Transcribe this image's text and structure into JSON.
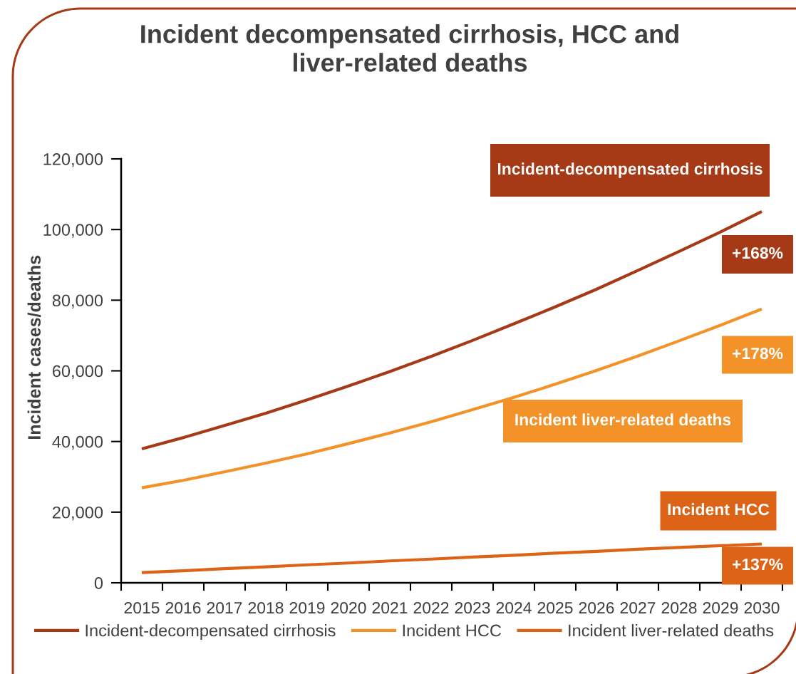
{
  "chart_data": {
    "type": "line",
    "title": "Incident decompensated cirrhosis, HCC and\nliver-related deaths",
    "ylabel": "Incident cases/deaths",
    "categories": [
      "2015",
      "2016",
      "2017",
      "2018",
      "2019",
      "2020",
      "2021",
      "2022",
      "2023",
      "2024",
      "2025",
      "2026",
      "2027",
      "2028",
      "2029",
      "2030"
    ],
    "series": [
      {
        "name": "Incident-decompensated cirrhosis",
        "color": "#a63a17",
        "values": [
          37900,
          41100,
          44500,
          48000,
          51800,
          55700,
          59800,
          64100,
          68600,
          73300,
          78100,
          83100,
          88400,
          93800,
          99300,
          105100
        ]
      },
      {
        "name": "Incident HCC",
        "color": "#f29228",
        "values": [
          26900,
          29000,
          31400,
          33900,
          36500,
          39400,
          42400,
          45600,
          49000,
          52500,
          56200,
          60100,
          64200,
          68500,
          72900,
          77500
        ]
      },
      {
        "name": "Incident liver-related deaths",
        "color": "#dd6316",
        "values": [
          2900,
          3400,
          4000,
          4500,
          5100,
          5600,
          6200,
          6700,
          7300,
          7800,
          8400,
          8900,
          9500,
          10000,
          10500,
          11000
        ]
      }
    ],
    "ylim": [
      0,
      120000
    ],
    "yticks": [
      0,
      {
        "value": 20000,
        "label": "20,000"
      },
      {
        "value": 40000,
        "label": "40,000"
      },
      {
        "value": 60000,
        "label": "60,000"
      },
      {
        "value": 80000,
        "label": "80,000"
      },
      {
        "value": 100000,
        "label": "100,000"
      },
      {
        "value": 120000,
        "label": "120,000"
      }
    ],
    "legend": "bottom",
    "line_style": "solid",
    "annotations": [
      "Incident-decompensated cirrhosis",
      "+168%",
      "+178%",
      "Incident liver-related deaths",
      "Incident HCC",
      "+137%"
    ]
  }
}
